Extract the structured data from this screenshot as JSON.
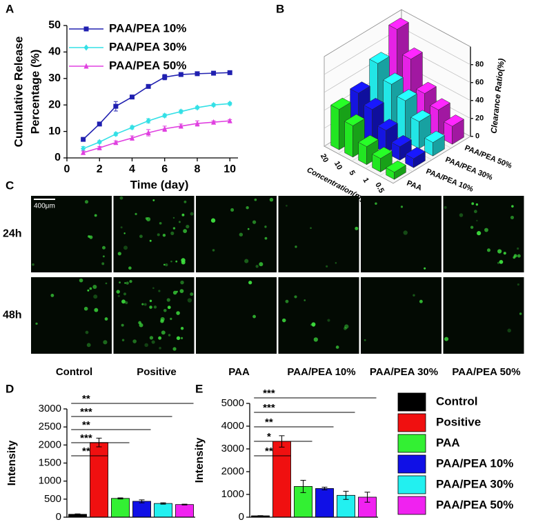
{
  "chart_data": [
    {
      "type": "line",
      "panel": "A",
      "xlabel": "Time (day)",
      "ylabel": [
        "Cumulative Release",
        "Percentage (%)"
      ],
      "x": [
        1,
        2,
        3,
        4,
        5,
        6,
        7,
        8,
        9,
        10
      ],
      "xlim": [
        0,
        10.5
      ],
      "xticks": [
        0,
        2,
        4,
        6,
        8,
        10
      ],
      "ylim": [
        0,
        50
      ],
      "yticks": [
        0,
        10,
        20,
        30,
        40,
        50
      ],
      "series": [
        {
          "name": "PAA/PEA 10%",
          "color": "#2020b0",
          "marker": "square",
          "values": [
            7,
            12.8,
            19.5,
            23,
            27,
            30.5,
            31.5,
            31.8,
            32,
            32.2
          ],
          "errors": [
            0.5,
            0.5,
            1.8,
            0.6,
            0.5,
            1,
            0.5,
            0.4,
            0.4,
            0.3
          ]
        },
        {
          "name": "PAA/PEA 30%",
          "color": "#33e0e6",
          "marker": "diamond",
          "values": [
            3.5,
            6,
            9,
            11.5,
            14,
            16,
            17.5,
            19,
            20,
            20.5
          ],
          "errors": [
            0.8,
            0.5,
            0.6,
            0.6,
            0.8,
            0.6,
            0.6,
            0.5,
            0.5,
            0.5
          ]
        },
        {
          "name": "PAA/PEA 50%",
          "color": "#e040e0",
          "marker": "triangle",
          "values": [
            2,
            3.8,
            5.8,
            7.5,
            9.5,
            11,
            12,
            13,
            13.5,
            14
          ],
          "errors": [
            0.6,
            0.5,
            0.6,
            0.8,
            1.2,
            1,
            0.8,
            1,
            0.5,
            0.5
          ]
        }
      ]
    },
    {
      "type": "bar3d",
      "panel": "B",
      "xlabel": "Concentration(mg/ml)",
      "zlabel": "Clearance Ratio(%)",
      "categories": [
        "20",
        "10",
        "5",
        "1",
        "0.5"
      ],
      "zlim": [
        0,
        100
      ],
      "zticks": [
        0,
        20,
        40,
        60,
        80
      ],
      "series": [
        {
          "name": "PAA",
          "color": "#22e622",
          "values": [
            45,
            35,
            20,
            15,
            8
          ]
        },
        {
          "name": "PAA/PEA 10%",
          "color": "#1515e0",
          "values": [
            50,
            40,
            25,
            15,
            10
          ]
        },
        {
          "name": "PAA/PEA 30%",
          "color": "#22e6e6",
          "values": [
            70,
            55,
            45,
            30,
            15
          ]
        },
        {
          "name": "PAA/PEA 50%",
          "color": "#e622e6",
          "values": [
            95,
            70,
            40,
            30,
            20
          ]
        }
      ]
    },
    {
      "type": "bar",
      "panel": "D",
      "ylabel": "Intensity",
      "categories": [
        "Control",
        "Positive",
        "PAA",
        "PAA/PEA 10%",
        "PAA/PEA 30%",
        "PAA/PEA 50%"
      ],
      "colors": [
        "#000000",
        "#f01010",
        "#33f033",
        "#1010e6",
        "#22f0f0",
        "#f022f0"
      ],
      "values": [
        80,
        2070,
        520,
        440,
        380,
        350
      ],
      "errors": [
        10,
        120,
        15,
        40,
        20,
        10
      ],
      "ylim": [
        0,
        3000
      ],
      "yticks": [
        0,
        500,
        1000,
        1500,
        2000,
        2500,
        3000
      ],
      "significance": [
        {
          "label": "**",
          "pair": [
            "Control",
            "Positive"
          ]
        },
        {
          "label": "***",
          "pair": [
            "Control",
            "PAA"
          ]
        },
        {
          "label": "**",
          "pair": [
            "Control",
            "PAA/PEA 10%"
          ]
        },
        {
          "label": "***",
          "pair": [
            "Control",
            "PAA/PEA 30%"
          ]
        },
        {
          "label": "**",
          "pair": [
            "Control",
            "PAA/PEA 50%"
          ]
        }
      ]
    },
    {
      "type": "bar",
      "panel": "E",
      "ylabel": "Intensity",
      "categories": [
        "Control",
        "Positive",
        "PAA",
        "PAA/PEA 10%",
        "PAA/PEA 30%",
        "PAA/PEA 50%"
      ],
      "colors": [
        "#000000",
        "#f01010",
        "#33f033",
        "#1010e6",
        "#22f0f0",
        "#f022f0"
      ],
      "values": [
        60,
        3330,
        1350,
        1260,
        960,
        880
      ],
      "errors": [
        10,
        250,
        270,
        60,
        180,
        220
      ],
      "ylim": [
        0,
        5000
      ],
      "yticks": [
        0,
        1000,
        2000,
        3000,
        4000,
        5000
      ],
      "significance": [
        {
          "label": "**",
          "pair": [
            "Control",
            "Positive"
          ]
        },
        {
          "label": "*",
          "pair": [
            "Control",
            "PAA"
          ]
        },
        {
          "label": "**",
          "pair": [
            "Control",
            "PAA/PEA 10%"
          ]
        },
        {
          "label": "***",
          "pair": [
            "Control",
            "PAA/PEA 30%"
          ]
        },
        {
          "label": "***",
          "pair": [
            "Control",
            "PAA/PEA 50%"
          ]
        }
      ]
    }
  ],
  "image_panel": {
    "panel": "C",
    "scale_bar": "400μm",
    "rows": [
      "24h",
      "48h"
    ],
    "columns": [
      "Control",
      "Positive",
      "PAA",
      "PAA/PEA 10%",
      "PAA/PEA 30%",
      "PAA/PEA 50%"
    ]
  }
}
